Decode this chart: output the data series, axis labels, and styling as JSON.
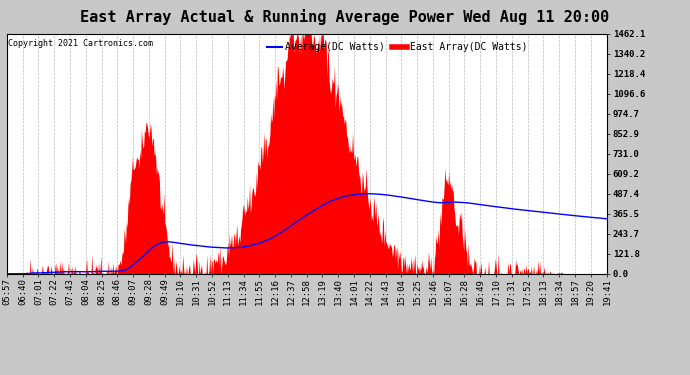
{
  "title": "East Array Actual & Running Average Power Wed Aug 11 20:00",
  "copyright": "Copyright 2021 Cartronics.com",
  "legend_labels": [
    "Average(DC Watts)",
    "East Array(DC Watts)"
  ],
  "legend_colors": [
    "blue",
    "red"
  ],
  "ylabel_right_ticks": [
    0.0,
    121.8,
    243.7,
    365.5,
    487.4,
    609.2,
    731.0,
    852.9,
    974.7,
    1096.6,
    1218.4,
    1340.2,
    1462.1
  ],
  "ymax": 1462.1,
  "ymin": 0.0,
  "fig_bg_color": "#c8c8c8",
  "plot_bg_color": "#ffffff",
  "title_fontsize": 11,
  "tick_label_fontsize": 6.5,
  "xtick_labels": [
    "05:57",
    "06:40",
    "07:01",
    "07:22",
    "07:43",
    "08:04",
    "08:25",
    "08:46",
    "09:07",
    "09:28",
    "09:49",
    "10:10",
    "10:31",
    "10:52",
    "11:13",
    "11:34",
    "11:55",
    "12:16",
    "12:37",
    "12:58",
    "13:19",
    "13:40",
    "14:01",
    "14:22",
    "14:43",
    "15:04",
    "15:25",
    "15:46",
    "16:07",
    "16:28",
    "16:49",
    "17:10",
    "17:31",
    "17:52",
    "18:13",
    "18:34",
    "18:57",
    "19:20",
    "19:41"
  ]
}
